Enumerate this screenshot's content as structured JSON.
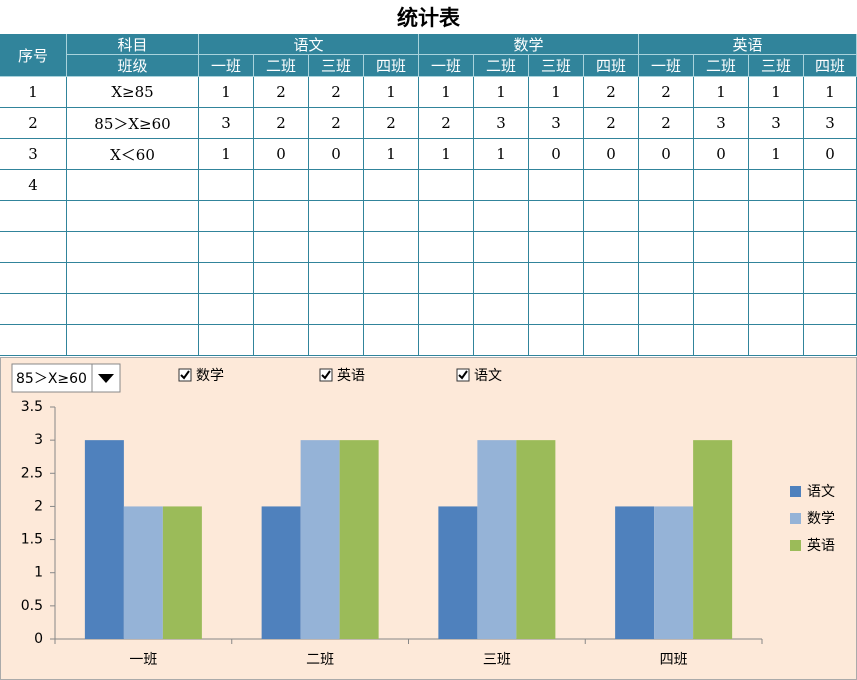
{
  "table": {
    "title": "统计表",
    "header": {
      "no": "序号",
      "subject": "科目",
      "class_label": "班级",
      "subjects": [
        "语文",
        "数学",
        "英语"
      ],
      "classes": [
        "一班",
        "二班",
        "三班",
        "四班"
      ]
    },
    "rows": [
      {
        "no": "1",
        "range": "X≥85",
        "values": [
          1,
          2,
          2,
          1,
          1,
          1,
          1,
          2,
          2,
          1,
          1,
          1
        ]
      },
      {
        "no": "2",
        "range": "85＞X≥60",
        "values": [
          3,
          2,
          2,
          2,
          2,
          3,
          3,
          2,
          2,
          3,
          3,
          3
        ]
      },
      {
        "no": "3",
        "range": "X＜60",
        "values": [
          1,
          0,
          0,
          1,
          1,
          1,
          0,
          0,
          0,
          0,
          1,
          0
        ]
      },
      {
        "no": "4"
      }
    ]
  },
  "controls": {
    "dropdown": "85＞X≥60",
    "checkboxes": [
      "数学",
      "英语",
      "语文"
    ]
  },
  "chart_data": {
    "type": "bar",
    "categories": [
      "一班",
      "二班",
      "三班",
      "四班"
    ],
    "series": [
      {
        "name": "语文",
        "color": "#4f81bd",
        "values": [
          3,
          2,
          2,
          2
        ]
      },
      {
        "name": "数学",
        "color": "#95b3d7",
        "values": [
          2,
          3,
          3,
          2
        ]
      },
      {
        "name": "英语",
        "color": "#9bbb59",
        "values": [
          2,
          3,
          3,
          3
        ]
      }
    ],
    "ylim": [
      0,
      3.5
    ],
    "yticks": [
      0,
      0.5,
      1,
      1.5,
      2,
      2.5,
      3,
      3.5
    ],
    "legend": "right"
  }
}
